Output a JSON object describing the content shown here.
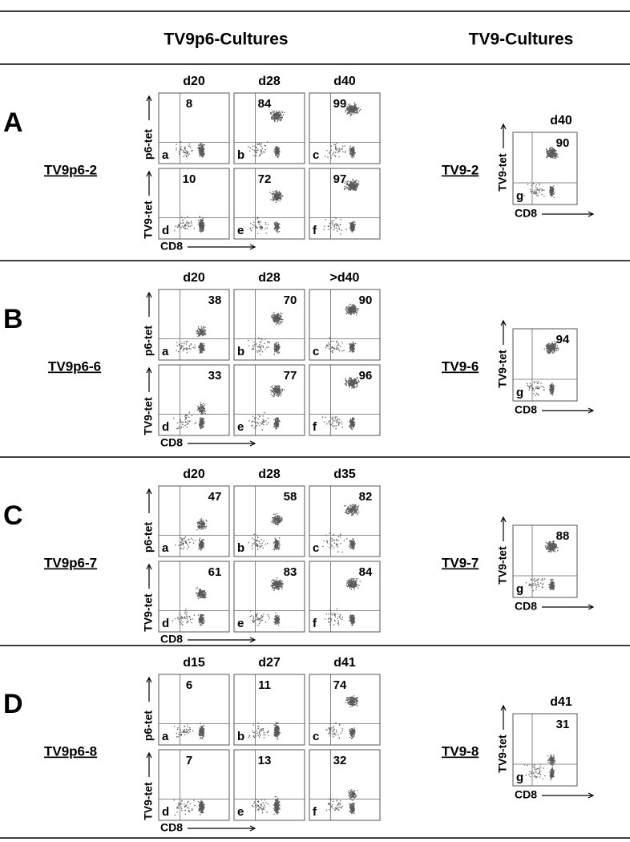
{
  "headers": {
    "left": "TV9p6-Cultures",
    "right": "TV9-Cultures"
  },
  "rows": [
    {
      "letter": "A",
      "name": "TV9p6-2",
      "days": [
        "d20",
        "d28",
        "d40"
      ],
      "y_top": "p6-tet",
      "y_bottom": "TV9-tet",
      "x": "CD8",
      "panels": [
        {
          "letter": "a",
          "value": 8
        },
        {
          "letter": "b",
          "value": 84
        },
        {
          "letter": "c",
          "value": 99
        },
        {
          "letter": "d",
          "value": 10
        },
        {
          "letter": "e",
          "value": 72
        },
        {
          "letter": "f",
          "value": 97
        }
      ],
      "tv9": {
        "name": "TV9-2",
        "day": "d40",
        "value": 90,
        "letter": "g",
        "y": "TV9-tet",
        "x": "CD8"
      }
    },
    {
      "letter": "B",
      "name": "TV9p6-6",
      "days": [
        "d20",
        "d28",
        ">d40"
      ],
      "y_top": "p6-tet",
      "y_bottom": "TV9-tet",
      "x": "CD8",
      "panels": [
        {
          "letter": "a",
          "value": 38
        },
        {
          "letter": "b",
          "value": 70
        },
        {
          "letter": "c",
          "value": 90
        },
        {
          "letter": "d",
          "value": 33
        },
        {
          "letter": "e",
          "value": 77
        },
        {
          "letter": "f",
          "value": 96
        }
      ],
      "tv9": {
        "name": "TV9-6",
        "value": 94,
        "letter": "g",
        "y": "TV9-tet",
        "x": "CD8"
      }
    },
    {
      "letter": "C",
      "name": "TV9p6-7",
      "days": [
        "d20",
        "d28",
        "d35"
      ],
      "y_top": "p6-tet",
      "y_bottom": "TV9-tet",
      "x": "CD8",
      "panels": [
        {
          "letter": "a",
          "value": 47
        },
        {
          "letter": "b",
          "value": 58
        },
        {
          "letter": "c",
          "value": 82
        },
        {
          "letter": "d",
          "value": 61
        },
        {
          "letter": "e",
          "value": 83
        },
        {
          "letter": "f",
          "value": 84
        }
      ],
      "tv9": {
        "name": "TV9-7",
        "value": 88,
        "letter": "g",
        "y": "TV9-tet",
        "x": "CD8"
      }
    },
    {
      "letter": "D",
      "name": "TV9p6-8",
      "days": [
        "d15",
        "d27",
        "d41"
      ],
      "y_top": "p6-tet",
      "y_bottom": "TV9-tet",
      "x": "CD8",
      "panels": [
        {
          "letter": "a",
          "value": 6
        },
        {
          "letter": "b",
          "value": 11
        },
        {
          "letter": "c",
          "value": 74
        },
        {
          "letter": "d",
          "value": 7
        },
        {
          "letter": "e",
          "value": 13
        },
        {
          "letter": "f",
          "value": 32
        }
      ],
      "tv9": {
        "name": "TV9-8",
        "day": "d41",
        "value": 31,
        "letter": "g",
        "y": "TV9-tet",
        "x": "CD8"
      }
    }
  ]
}
